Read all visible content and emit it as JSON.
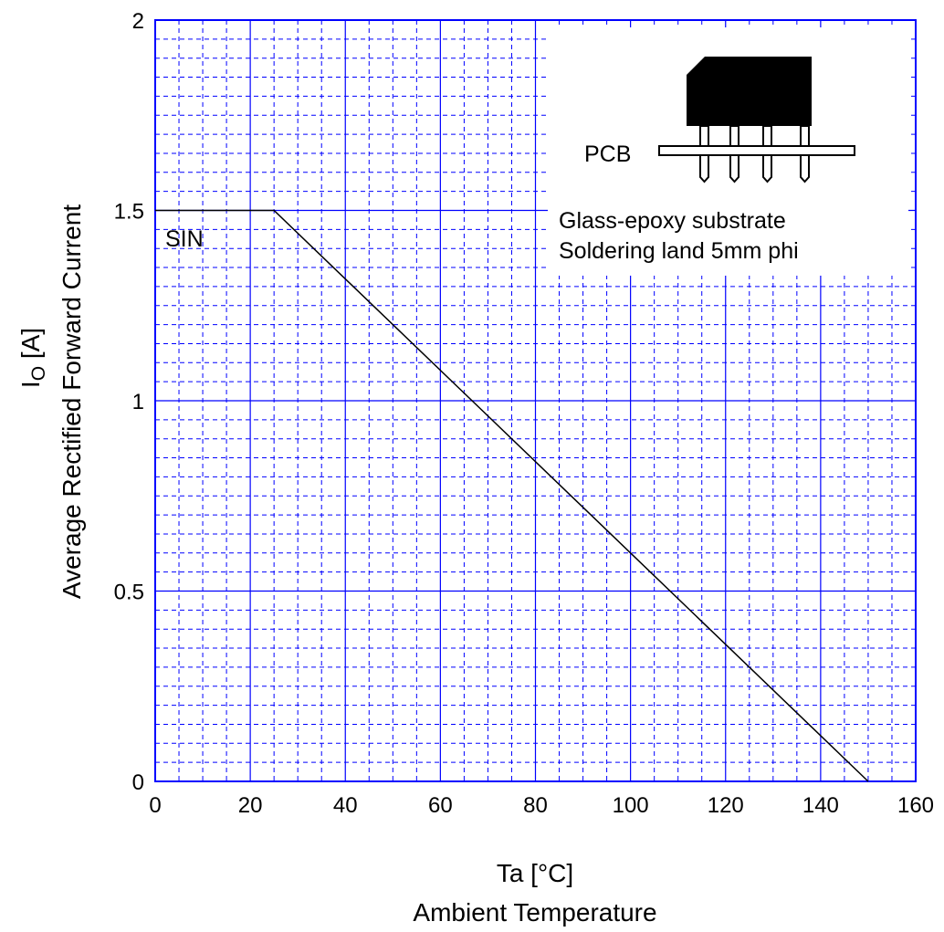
{
  "chart_data": {
    "type": "line",
    "xlabel_line1": "Ta  [°C]",
    "xlabel_line2": "Ambient Temperature",
    "ylabel_line1_main": "I",
    "ylabel_line1_sub": "O",
    "ylabel_line1_unit": "  [A]",
    "ylabel_line2": "Average Rectified Forward Current",
    "xlim": [
      0,
      160
    ],
    "ylim": [
      0,
      2
    ],
    "x_ticks": [
      0,
      20,
      40,
      60,
      80,
      100,
      120,
      140,
      160
    ],
    "y_ticks": [
      0,
      0.5,
      1,
      1.5,
      2
    ],
    "x_tick_labels": [
      "0",
      "20",
      "40",
      "60",
      "80",
      "100",
      "120",
      "140",
      "160"
    ],
    "y_tick_labels": [
      "0",
      "0.5",
      "1",
      "1.5",
      "2"
    ],
    "grid": true,
    "grid_color": "#0000ff",
    "series": [
      {
        "name": "SIN",
        "x": [
          0,
          25,
          150
        ],
        "y": [
          1.5,
          1.5,
          0
        ]
      }
    ],
    "annotations": {
      "pcb": "PCB",
      "note_line1": "Glass-epoxy substrate",
      "note_line2": "Soldering land 5mm phi"
    }
  }
}
